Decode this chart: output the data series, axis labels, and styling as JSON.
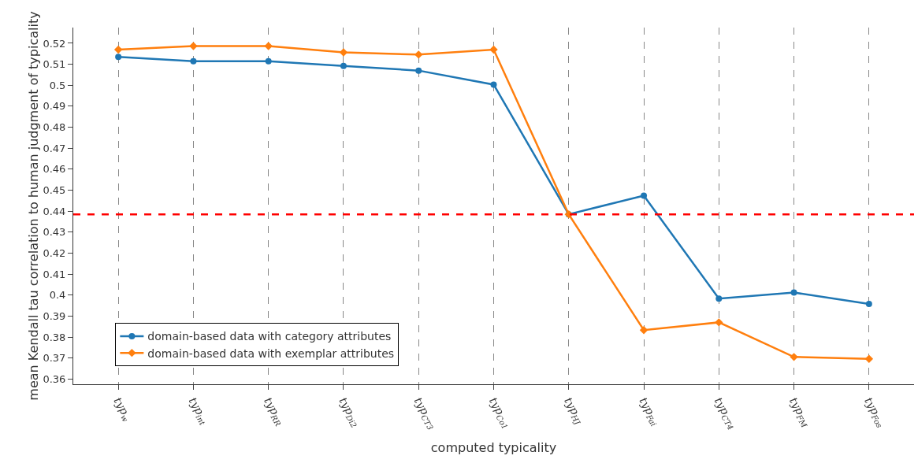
{
  "chart_data": {
    "type": "line",
    "xlabel": "computed typicality",
    "ylabel": "mean Kendall tau correlation to human judgment of typicality",
    "categories": [
      "typ$_{w}$",
      "typ$_{int}$",
      "typ$_{RR}$",
      "typ$_{Di2}$",
      "typ$_{CT3}$",
      "typ$_{Co1}$",
      "typ$_{HJ}$",
      "typ$_{Fai}$",
      "typ$_{CT4}$",
      "typ$_{FM}$",
      "typ$_{Fos}$"
    ],
    "series": [
      {
        "name": "domain-based data with category attributes",
        "color": "#1f77b4",
        "marker": "circle",
        "values": [
          0.5135,
          0.5115,
          0.5115,
          0.5092,
          0.507,
          0.5003,
          0.4385,
          0.4474,
          0.3983,
          0.4012,
          0.3958
        ]
      },
      {
        "name": "domain-based data with exemplar attributes",
        "color": "#ff7f0e",
        "marker": "diamond",
        "values": [
          0.517,
          0.5187,
          0.5187,
          0.5157,
          0.5146,
          0.517,
          0.4385,
          0.3833,
          0.387,
          0.3705,
          0.3696
        ]
      }
    ],
    "ylim": [
      0.3575,
      0.5275
    ],
    "yticks": [
      0.36,
      0.37,
      0.38,
      0.39,
      0.4,
      0.41,
      0.42,
      0.43,
      0.44,
      0.45,
      0.46,
      0.47,
      0.48,
      0.49,
      0.5,
      0.51,
      0.52
    ],
    "ref_lines": [
      {
        "axis": "y",
        "value": 0.4385,
        "color": "#ff0000",
        "line_style": "dashed"
      }
    ],
    "grid": "x",
    "legend": "bottom left",
    "line_style": "solid"
  }
}
